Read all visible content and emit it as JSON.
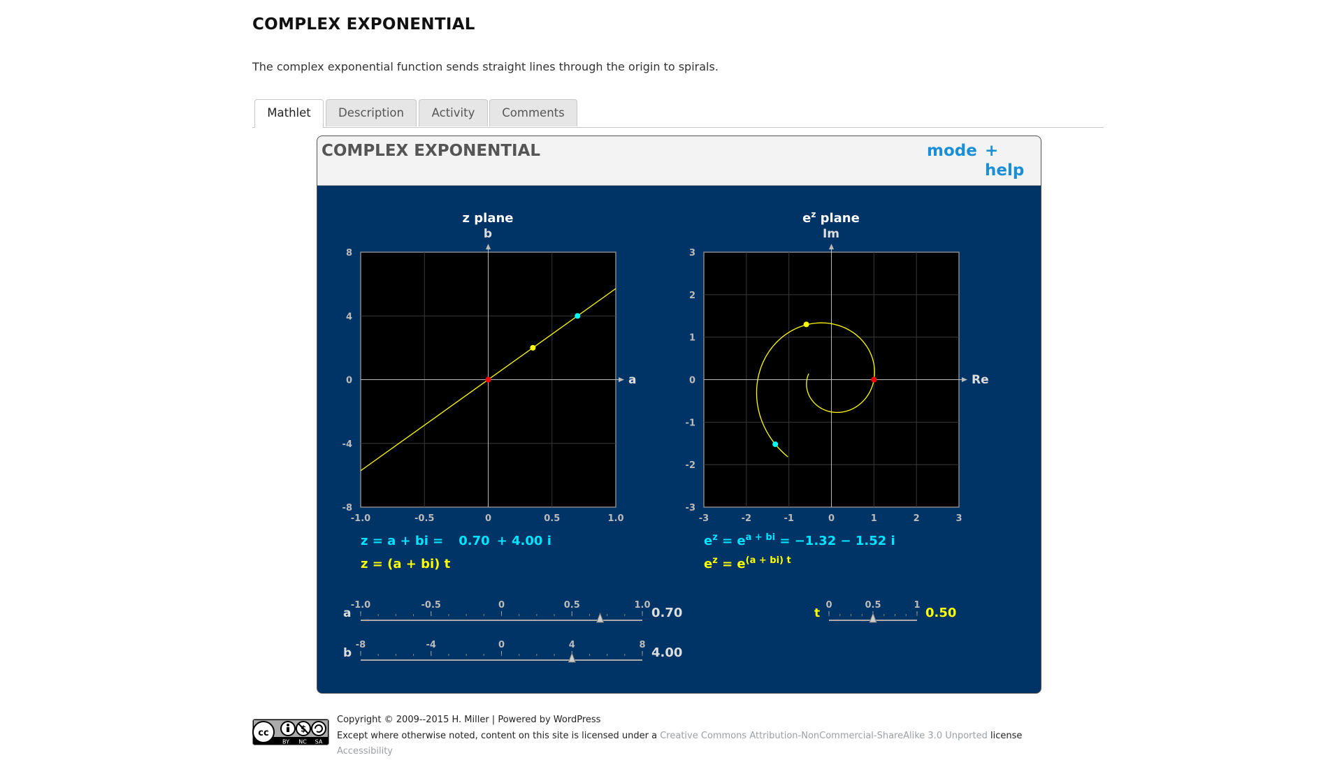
{
  "page": {
    "title": "COMPLEX EXPONENTIAL",
    "lead": "The complex exponential function sends straight lines through the origin to spirals."
  },
  "tabs": [
    {
      "label": "Mathlet",
      "active": true
    },
    {
      "label": "Description",
      "active": false
    },
    {
      "label": "Activity",
      "active": false
    },
    {
      "label": "Comments",
      "active": false
    }
  ],
  "mathlet": {
    "title": "COMPLEX EXPONENTIAL",
    "mode_label": "mode",
    "plus_label": "+",
    "help_label": "help",
    "colors": {
      "background": "#003366",
      "curve": "#ffff00",
      "point_cyan": "#00ffff",
      "point_red": "#ff0000",
      "label_cyan": "#00e5ff",
      "label_yellow": "#ffff00"
    },
    "z_plane": {
      "title": "z plane",
      "x_axis_label": "a",
      "y_axis_label": "b",
      "x_ticks": [
        "-1.0",
        "-0.5",
        "0",
        "0.5",
        "1.0"
      ],
      "y_ticks": [
        "8",
        "4",
        "0",
        "-4",
        "-8"
      ],
      "xlim": [
        -1,
        1
      ],
      "ylim": [
        -8,
        8
      ],
      "line_through_origin_slope": 5.714,
      "points": {
        "cyan": [
          0.7,
          4.0
        ],
        "yellow": [
          0.35,
          2.0
        ],
        "red": [
          0,
          0
        ]
      }
    },
    "ez_plane": {
      "title_base": "e",
      "title_sup": "z",
      "title_rest": " plane",
      "x_axis_label": "Re",
      "y_axis_label": "Im",
      "x_ticks": [
        "-3",
        "-2",
        "-1",
        "0",
        "1",
        "2",
        "3"
      ],
      "y_ticks": [
        "3",
        "2",
        "1",
        "0",
        "-1",
        "-2",
        "-3"
      ],
      "xlim": [
        -3,
        3
      ],
      "ylim": [
        -3,
        3
      ],
      "points": {
        "cyan": [
          -1.32,
          -1.52
        ],
        "yellow": [
          -0.59,
          1.3
        ],
        "red": [
          1,
          0
        ]
      }
    },
    "readouts": {
      "z_label": "z = a + bi =",
      "z_real": "0.70",
      "z_imag": "+ 4.00 i",
      "z_param": "z = (a + bi) t",
      "ez_prefix": "e",
      "ez_sup": "z",
      "ez_eq": " = e",
      "ez_sup2": "a + bi",
      "ez_value": " = −1.32 − 1.52 i",
      "ez2_prefix": "e",
      "ez2_sup": "z",
      "ez2_eq": " = e",
      "ez2_sup2": "(a + bi) t"
    },
    "sliders": {
      "a": {
        "label": "a",
        "ticks": [
          "-1.0",
          "-0.5",
          "0",
          "0.5",
          "1.0"
        ],
        "min": -1,
        "max": 1,
        "value": 0.7,
        "display": "0.70"
      },
      "b": {
        "label": "b",
        "ticks": [
          "-8",
          "-4",
          "0",
          "4",
          "8"
        ],
        "min": -8,
        "max": 8,
        "value": 4.0,
        "display": "4.00"
      },
      "t": {
        "label": "t",
        "ticks": [
          "0",
          "0.5",
          "1"
        ],
        "min": 0,
        "max": 1,
        "value": 0.5,
        "display": "0.50"
      }
    }
  },
  "footer": {
    "copyright": "Copyright © 2009--2015 H. Miller | Powered by WordPress",
    "license_prefix": "Except where otherwise noted, content on this site is licensed under a ",
    "license_link": "Creative Commons Attribution-NonCommercial-ShareAlike 3.0 Unported",
    "license_suffix": " license",
    "accessibility": "Accessibility",
    "badge_text": [
      "BY",
      "NC",
      "SA"
    ]
  }
}
